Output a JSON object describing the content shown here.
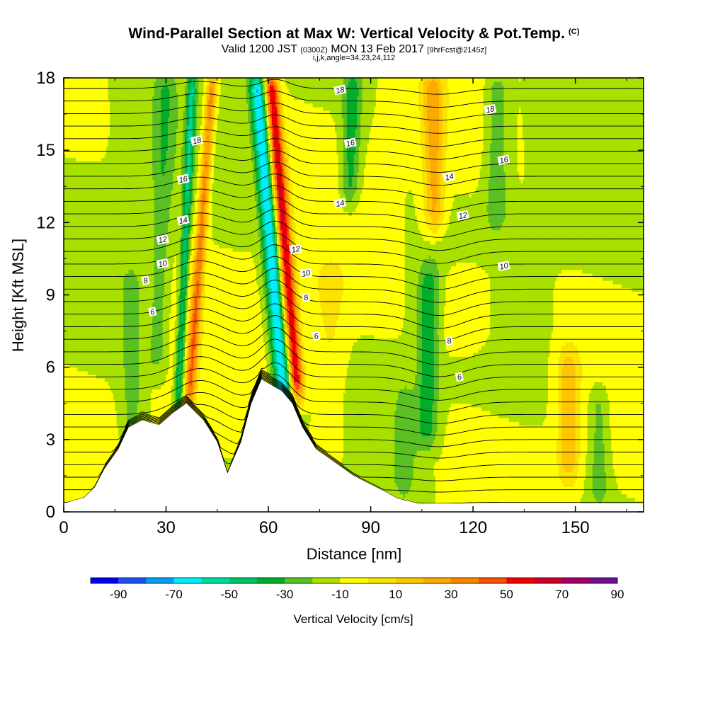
{
  "title": {
    "main": "Wind-Parallel Section at Max W: Vertical Velocity & Pot.Temp.",
    "copyright": "(C)",
    "valid_prefix": "Valid 1200 JST",
    "zulu": "(0300Z)",
    "valid_date": "MON 13 Feb 2017",
    "forecast": "[9hrFcst@2145z]",
    "indices": "i,j,k,angle=34,23,24,112"
  },
  "chart_data": {
    "type": "heatmap",
    "xlabel": "Distance [nm]",
    "ylabel": "Height [Kft MSL]",
    "xlim": [
      0,
      170
    ],
    "ylim": [
      0,
      18
    ],
    "x_ticks": [
      "0",
      "30",
      "60",
      "90",
      "120",
      "150"
    ],
    "y_ticks": [
      "0",
      "3",
      "6",
      "9",
      "12",
      "15",
      "18"
    ],
    "colorbar": {
      "label": "Vertical Velocity [cm/s]",
      "tick_labels": [
        "-90",
        "-70",
        "-50",
        "-30",
        "-10",
        "10",
        "30",
        "50",
        "70",
        "90"
      ],
      "bins": [
        {
          "max": -80,
          "color": "#0000f0"
        },
        {
          "max": -70,
          "color": "#1e4ff5"
        },
        {
          "max": -60,
          "color": "#0a9cf5"
        },
        {
          "max": -50,
          "color": "#00ecff"
        },
        {
          "max": -40,
          "color": "#00dca0"
        },
        {
          "max": -30,
          "color": "#00c468"
        },
        {
          "max": -20,
          "color": "#00ae2a"
        },
        {
          "max": -10,
          "color": "#5ac024"
        },
        {
          "max": 0,
          "color": "#a8e100"
        },
        {
          "max": 10,
          "color": "#ffff00"
        },
        {
          "max": 20,
          "color": "#fbe200"
        },
        {
          "max": 30,
          "color": "#fdc600"
        },
        {
          "max": 40,
          "color": "#fcaa00"
        },
        {
          "max": 50,
          "color": "#fc8400"
        },
        {
          "max": 60,
          "color": "#f85000"
        },
        {
          "max": 70,
          "color": "#f00000"
        },
        {
          "max": 80,
          "color": "#c8002a"
        },
        {
          "max": 90,
          "color": "#a00064"
        },
        {
          "max": 999,
          "color": "#6e0c94"
        }
      ]
    },
    "terrain_profile": [
      [
        0,
        0.35
      ],
      [
        6,
        0.6
      ],
      [
        9,
        1.0
      ],
      [
        12,
        1.8
      ],
      [
        16,
        2.6
      ],
      [
        19,
        3.5
      ],
      [
        23,
        3.8
      ],
      [
        28,
        3.6
      ],
      [
        32,
        4.1
      ],
      [
        36,
        4.5
      ],
      [
        41,
        3.8
      ],
      [
        45,
        2.9
      ],
      [
        48,
        1.6
      ],
      [
        52,
        2.9
      ],
      [
        55,
        4.5
      ],
      [
        58,
        5.5
      ],
      [
        64,
        5.0
      ],
      [
        67,
        4.5
      ],
      [
        70,
        3.5
      ],
      [
        74,
        2.6
      ],
      [
        80,
        2.0
      ],
      [
        85,
        1.5
      ],
      [
        92,
        1.0
      ],
      [
        98,
        0.55
      ],
      [
        104,
        0.35
      ],
      [
        170,
        0.35
      ]
    ],
    "w_bands_cm_s": [
      {
        "center": 62,
        "width": 2.5,
        "lean": -0.6,
        "amp": -62,
        "zmin": 4,
        "zmax": 18
      },
      {
        "center": 66,
        "width": 2.2,
        "lean": -0.6,
        "amp": 72,
        "zmin": 5,
        "zmax": 18
      },
      {
        "center": 35,
        "width": 1.3,
        "lean": 0.3,
        "amp": -36,
        "zmin": 4.5,
        "zmax": 18
      },
      {
        "center": 39,
        "width": 1.6,
        "lean": 0.5,
        "amp": 46,
        "zmin": 4.5,
        "zmax": 18
      },
      {
        "center": 28,
        "width": 3.0,
        "lean": 0.2,
        "amp": -16,
        "zmin": 6,
        "zmax": 18
      },
      {
        "center": 20,
        "width": 3.5,
        "lean": 0.0,
        "amp": -14,
        "zmin": 3,
        "zmax": 10
      },
      {
        "center": 83,
        "width": 2.8,
        "lean": 0.2,
        "amp": -26,
        "zmin": 13,
        "zmax": 18
      },
      {
        "center": 109,
        "width": 3.0,
        "lean": -0.1,
        "amp": 33,
        "zmin": 12,
        "zmax": 18
      },
      {
        "center": 107,
        "width": 3.2,
        "lean": 0.1,
        "amp": -26,
        "zmin": 3,
        "zmax": 10
      },
      {
        "center": 127,
        "width": 3.5,
        "lean": 0.0,
        "amp": -18,
        "zmin": 12,
        "zmax": 18
      },
      {
        "center": 148,
        "width": 3.2,
        "lean": 0.0,
        "amp": 26,
        "zmin": 1.5,
        "zmax": 6.5
      },
      {
        "center": 157,
        "width": 3.0,
        "lean": 0.0,
        "amp": -16,
        "zmin": 0.5,
        "zmax": 5
      },
      {
        "center": 118,
        "width": 8.0,
        "lean": 0.0,
        "amp": 14,
        "zmin": 7,
        "zmax": 10
      },
      {
        "center": 78,
        "width": 5.0,
        "lean": 0.0,
        "amp": 12,
        "zmin": 2,
        "zmax": 10
      },
      {
        "center": 100,
        "width": 3.0,
        "lean": 0.0,
        "amp": -14,
        "zmin": 1,
        "zmax": 5
      }
    ],
    "contour_labels": [
      {
        "text": "18",
        "x": 39,
        "z": 15.4
      },
      {
        "text": "16",
        "x": 35,
        "z": 13.8
      },
      {
        "text": "14",
        "x": 35,
        "z": 12.1
      },
      {
        "text": "12",
        "x": 29,
        "z": 11.3
      },
      {
        "text": "10",
        "x": 29,
        "z": 10.3
      },
      {
        "text": "8",
        "x": 24,
        "z": 9.6
      },
      {
        "text": "6",
        "x": 26,
        "z": 8.3
      },
      {
        "text": "18",
        "x": 81,
        "z": 17.5
      },
      {
        "text": "16",
        "x": 84,
        "z": 15.3
      },
      {
        "text": "14",
        "x": 81,
        "z": 12.8
      },
      {
        "text": "12",
        "x": 68,
        "z": 10.9
      },
      {
        "text": "10",
        "x": 71,
        "z": 9.9
      },
      {
        "text": "8",
        "x": 71,
        "z": 8.9
      },
      {
        "text": "6",
        "x": 74,
        "z": 7.3
      },
      {
        "text": "18",
        "x": 125,
        "z": 16.7
      },
      {
        "text": "16",
        "x": 129,
        "z": 14.6
      },
      {
        "text": "14",
        "x": 113,
        "z": 13.9
      },
      {
        "text": "12",
        "x": 117,
        "z": 12.3
      },
      {
        "text": "10",
        "x": 129,
        "z": 10.2
      },
      {
        "text": "8",
        "x": 113,
        "z": 7.1
      },
      {
        "text": "6",
        "x": 116,
        "z": 5.6
      }
    ]
  }
}
